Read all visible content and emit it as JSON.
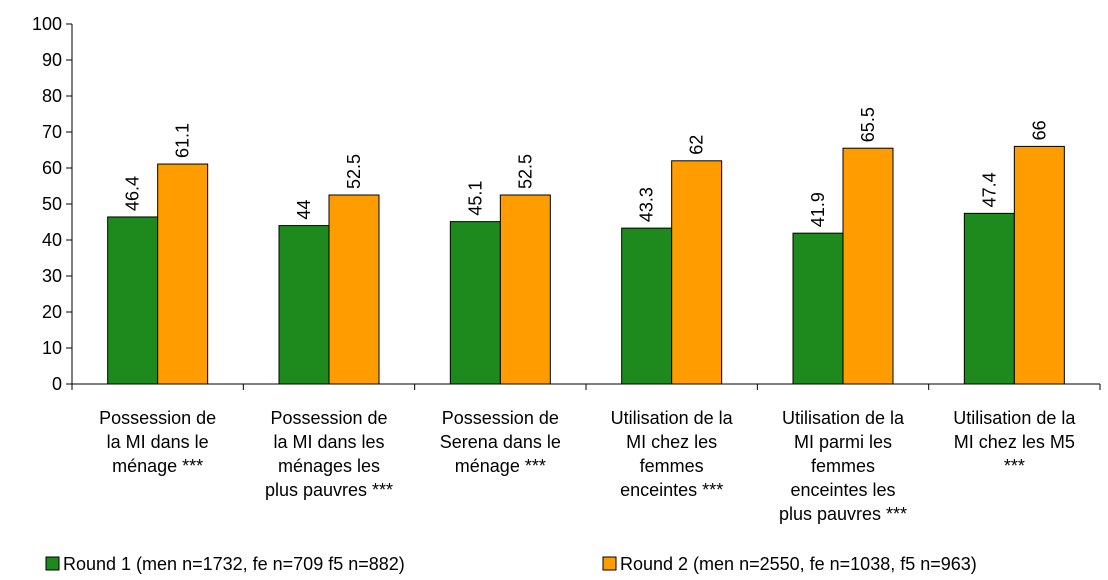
{
  "chart_data": {
    "type": "bar",
    "categories": [
      [
        "Possession de",
        "la MI dans le",
        "ménage ***"
      ],
      [
        "Possession de",
        "la MI dans les",
        "ménages les",
        "plus pauvres ***"
      ],
      [
        "Possession de",
        "Serena dans le",
        "ménage ***"
      ],
      [
        "Utilisation de la",
        "MI chez les",
        "femmes",
        "enceintes ***"
      ],
      [
        "Utilisation de la",
        "MI parmi les",
        "femmes",
        "enceintes les",
        "plus pauvres ***"
      ],
      [
        "Utilisation de la",
        "MI chez les M5",
        "***"
      ]
    ],
    "series": [
      {
        "name": "Round 1 (men n=1732, fe n=709 f5 n=882)",
        "color": "#1e8a1e",
        "values": [
          46.4,
          44,
          45.1,
          43.3,
          41.9,
          47.4
        ]
      },
      {
        "name": "Round 2 (men n=2550, fe n=1038, f5 n=963)",
        "color": "#ff9c00",
        "values": [
          61.1,
          52.5,
          52.5,
          62,
          65.5,
          66
        ]
      }
    ],
    "ylim": [
      0,
      100
    ],
    "yticks": [
      0,
      10,
      20,
      30,
      40,
      50,
      60,
      70,
      80,
      90,
      100
    ],
    "grid": false
  }
}
